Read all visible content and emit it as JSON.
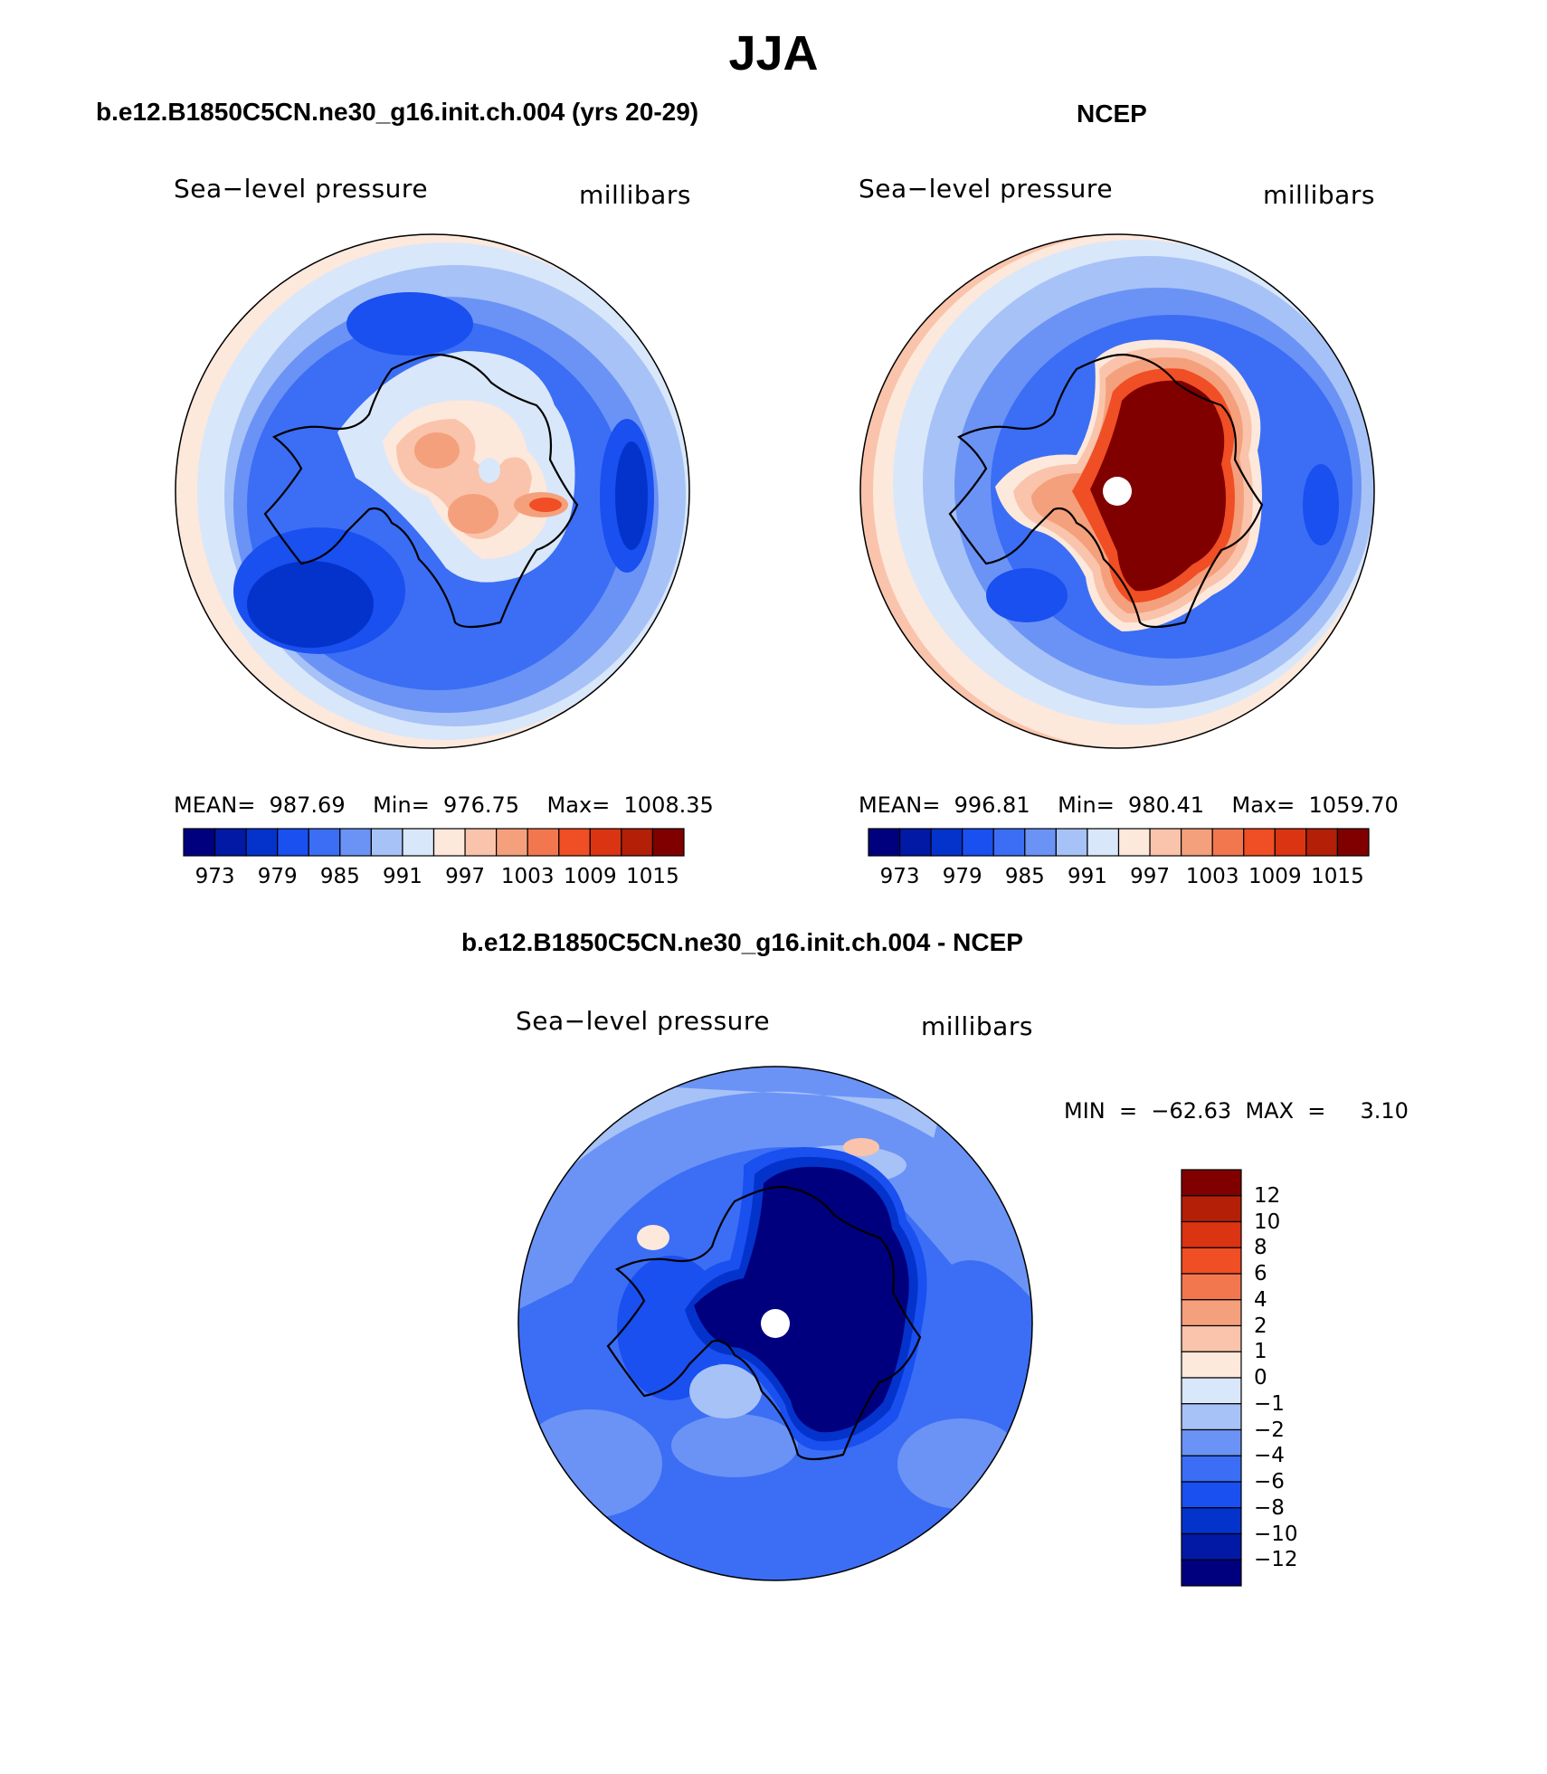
{
  "title": "JJA",
  "panels": [
    {
      "title": "b.e12.B1850C5CN.ne30_g16.init.ch.004 (yrs 20-29)",
      "left_label": "Sea−level pressure",
      "right_label": "millibars",
      "stats": "MEAN=  987.69    Min=  976.75    Max=  1008.35"
    },
    {
      "title": "NCEP",
      "left_label": "Sea−level pressure",
      "right_label": "millibars",
      "stats": "MEAN=  996.81    Min=  980.41    Max=  1059.70"
    },
    {
      "title": "b.e12.B1850C5CN.ne30_g16.init.ch.004 - NCEP",
      "left_label": "Sea−level pressure",
      "right_label": "millibars",
      "stats": "MIN  =  −62.63  MAX  =     3.10"
    }
  ],
  "colorbar_abs": {
    "colors": [
      "#00007f",
      "#0219a6",
      "#0433cc",
      "#1a4ff0",
      "#3b6ef5",
      "#6b93f5",
      "#a7c2f7",
      "#d9e7fa",
      "#fde8dc",
      "#f9c4ab",
      "#f5a07c",
      "#f2774f",
      "#f04e24",
      "#db3412",
      "#b41f08",
      "#800000"
    ],
    "labels": [
      "973",
      "979",
      "985",
      "991",
      "997",
      "1003",
      "1009",
      "1015"
    ]
  },
  "colorbar_diff": {
    "colors": [
      "#00007f",
      "#0219a6",
      "#0433cc",
      "#1a4ff0",
      "#3b6ef5",
      "#6b93f5",
      "#a7c2f7",
      "#d9e7fa",
      "#fde8dc",
      "#f9c4ab",
      "#f5a07c",
      "#f2774f",
      "#f04e24",
      "#db3412",
      "#b41f08",
      "#800000"
    ],
    "labels": [
      "12",
      "10",
      "8",
      "6",
      "4",
      "2",
      "1",
      "0",
      "−1",
      "−2",
      "−4",
      "−6",
      "−8",
      "−10",
      "−12"
    ]
  }
}
